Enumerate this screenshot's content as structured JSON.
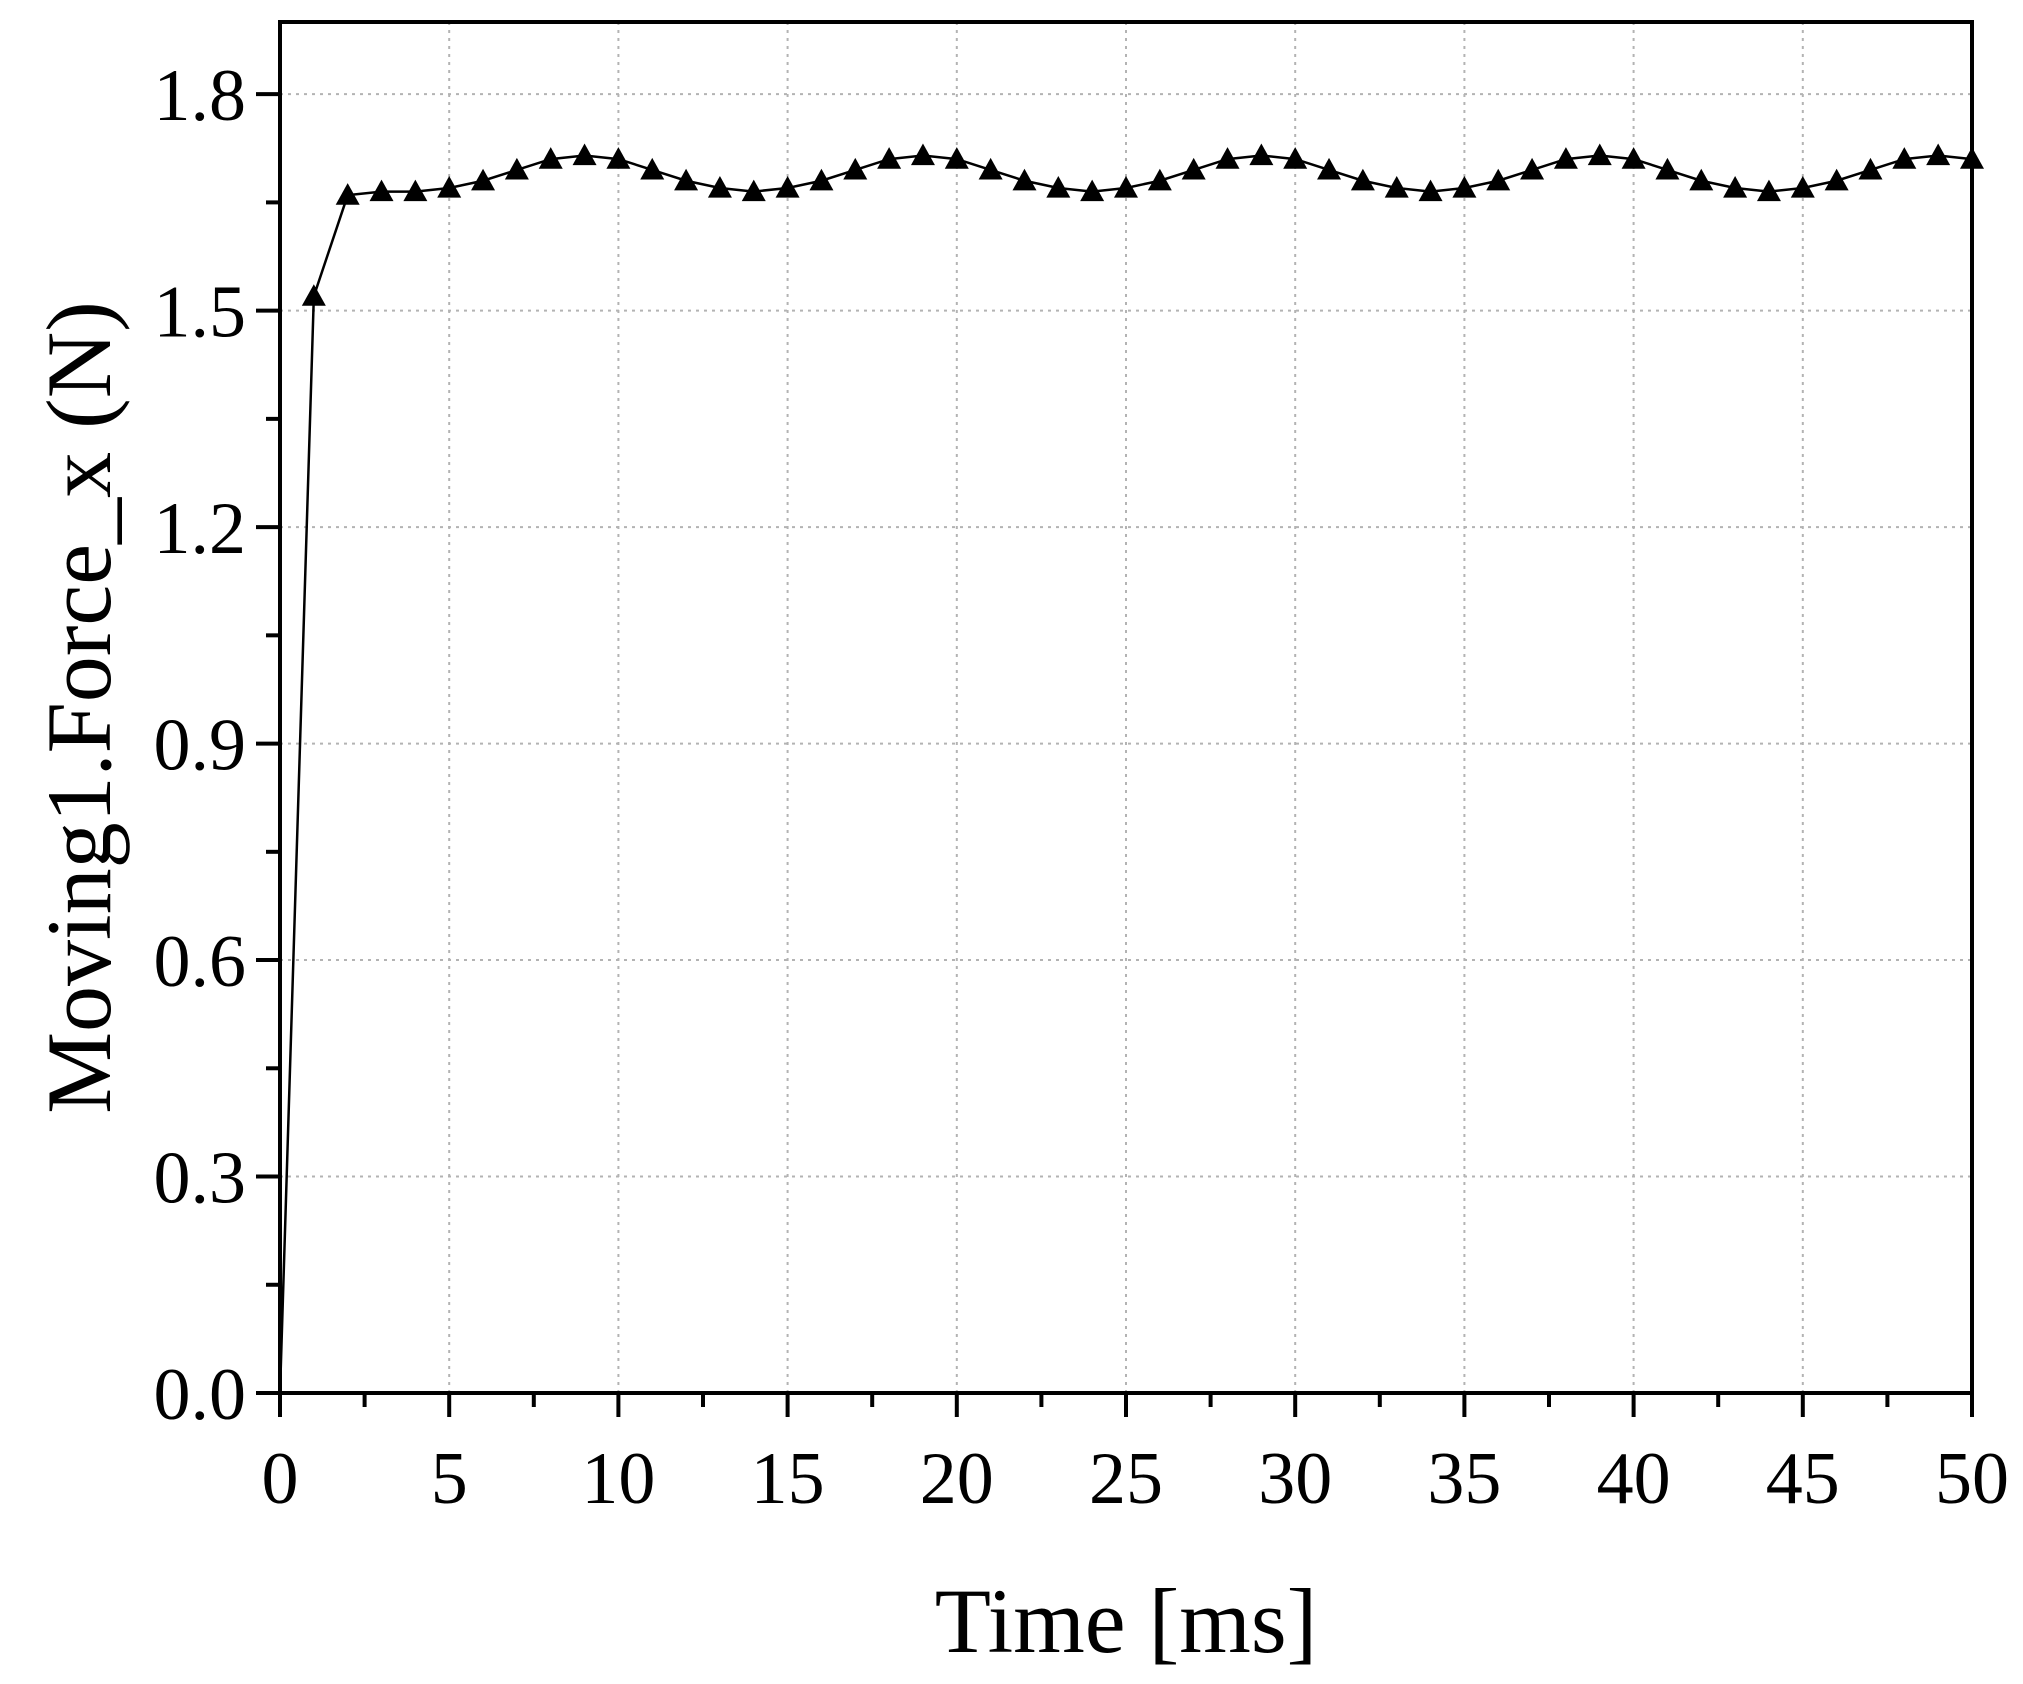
{
  "chart_data": {
    "type": "line",
    "title": "",
    "xlabel": "Time [ms]",
    "ylabel": "Moving1.Force_x (N)",
    "xlim": [
      0,
      50
    ],
    "ylim": [
      0,
      1.9
    ],
    "xticks": [
      "0",
      "5",
      "10",
      "15",
      "20",
      "25",
      "30",
      "35",
      "40",
      "45",
      "50"
    ],
    "yticks": [
      "0.0",
      "0.3",
      "0.6",
      "0.9",
      "1.2",
      "1.5",
      "1.8"
    ],
    "grid": true,
    "marker": "triangle",
    "x": [
      0,
      1,
      2,
      3,
      4,
      5,
      6,
      7,
      8,
      9,
      10,
      11,
      12,
      13,
      14,
      15,
      16,
      17,
      18,
      19,
      20,
      21,
      22,
      23,
      24,
      25,
      26,
      27,
      28,
      29,
      30,
      31,
      32,
      33,
      34,
      35,
      36,
      37,
      38,
      39,
      40,
      41,
      42,
      43,
      44,
      45,
      46,
      47,
      48,
      49,
      50
    ],
    "y": [
      0,
      1.52,
      1.66,
      1.665,
      1.665,
      1.67,
      1.68,
      1.695,
      1.71,
      1.715,
      1.71,
      1.695,
      1.68,
      1.67,
      1.665,
      1.67,
      1.68,
      1.695,
      1.71,
      1.715,
      1.71,
      1.695,
      1.68,
      1.67,
      1.665,
      1.67,
      1.68,
      1.695,
      1.71,
      1.715,
      1.71,
      1.695,
      1.68,
      1.67,
      1.665,
      1.67,
      1.68,
      1.695,
      1.71,
      1.715,
      1.71,
      1.695,
      1.68,
      1.67,
      1.665,
      1.67,
      1.68,
      1.695,
      1.71,
      1.715,
      1.71
    ]
  }
}
